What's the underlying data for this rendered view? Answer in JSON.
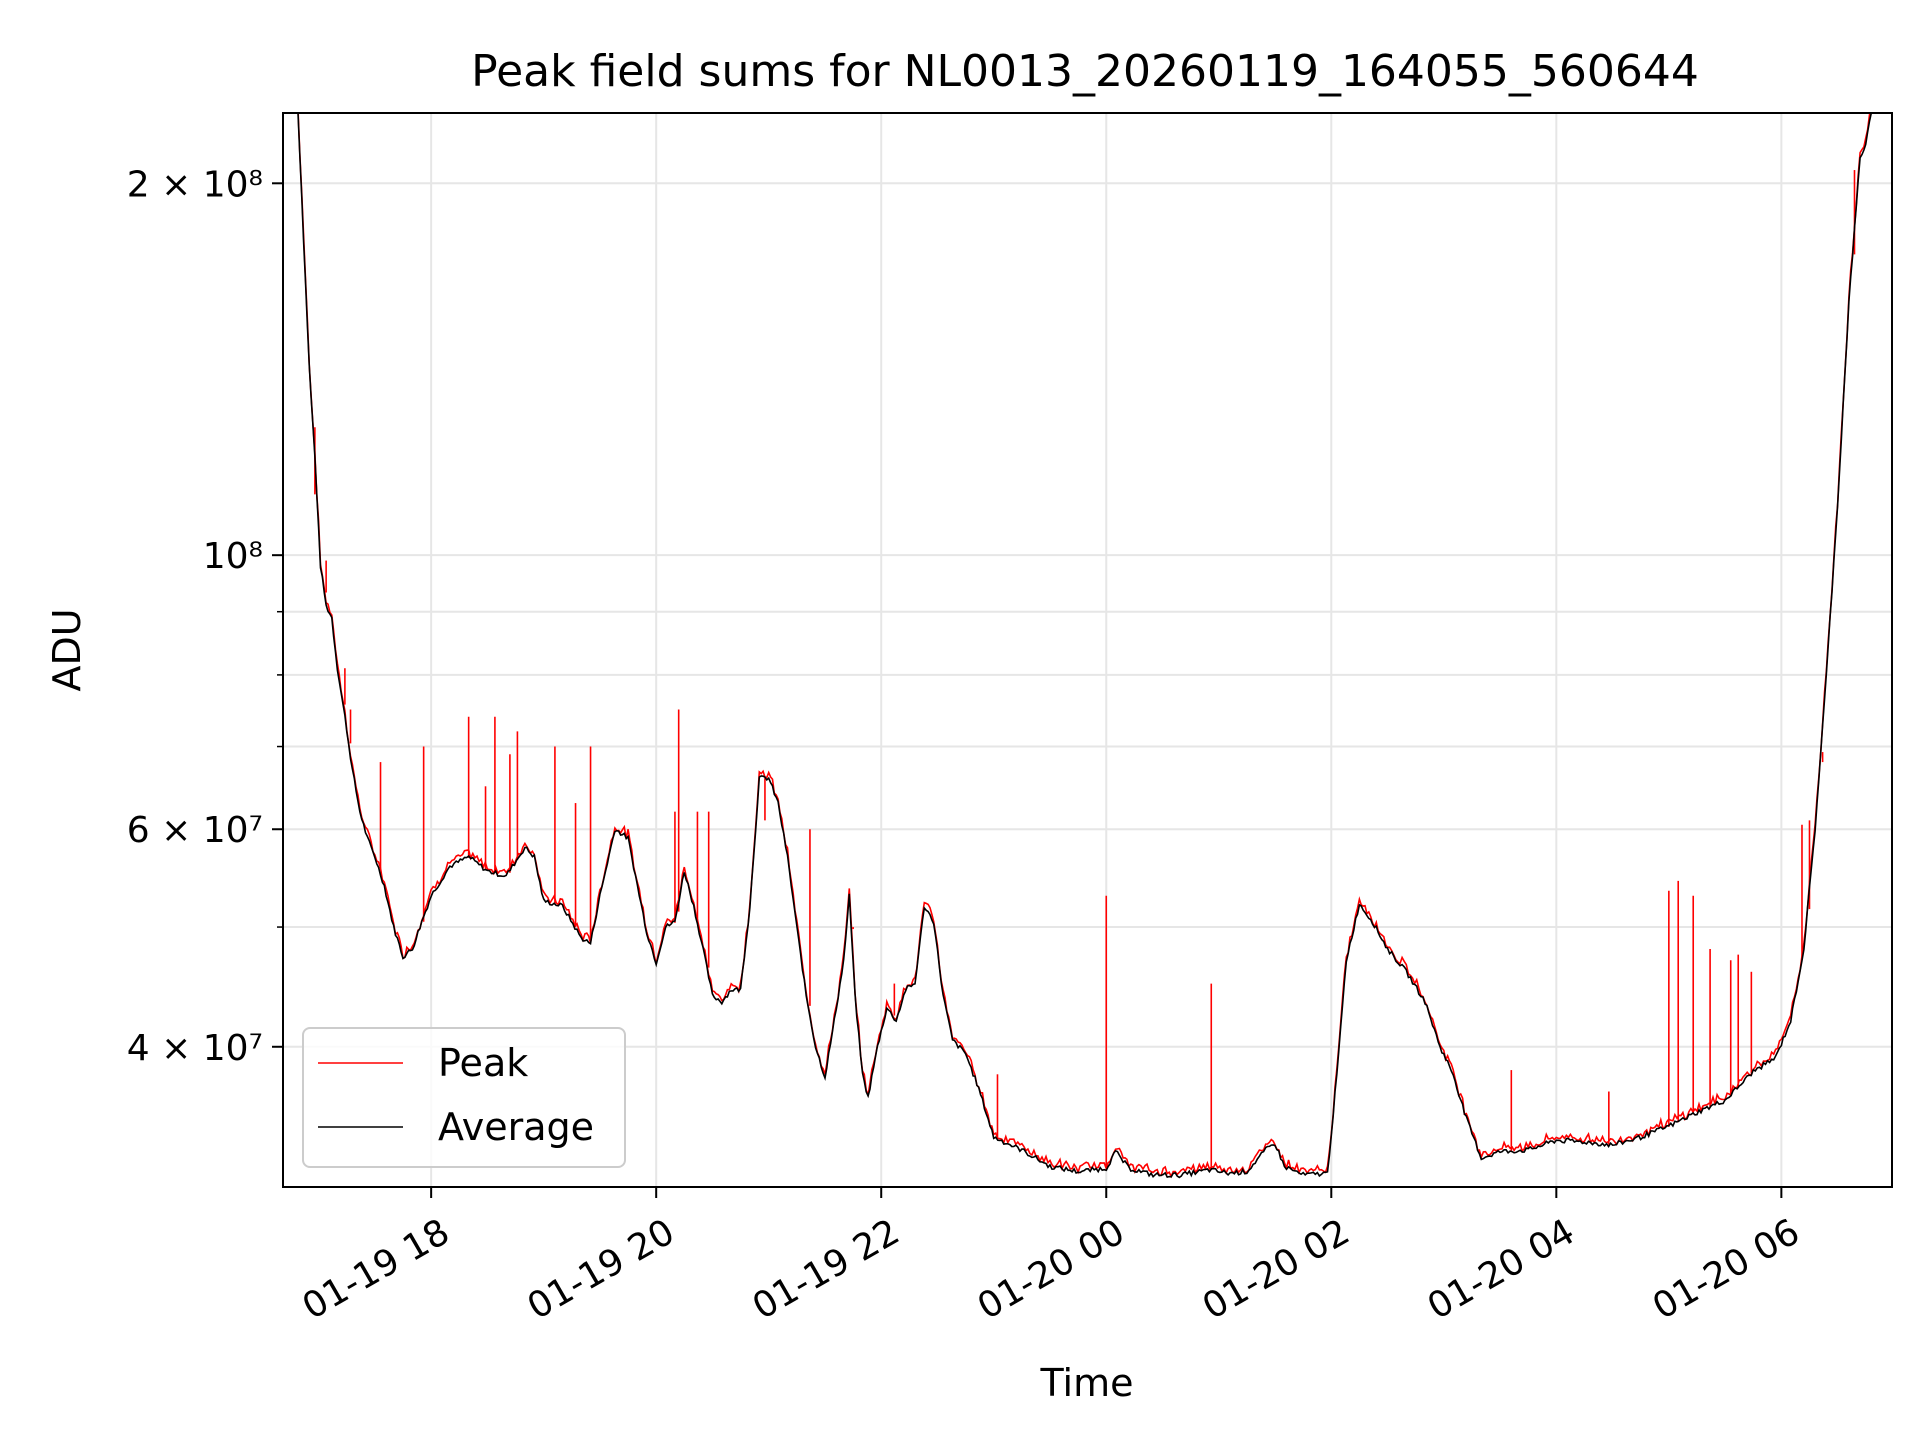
{
  "chart_data": {
    "type": "line",
    "title": "Peak field sums for NL0013_20260119_164055_560644",
    "xlabel": "Time",
    "ylabel": "ADU",
    "yscale": "log",
    "ylim": [
      30800000,
      228000000
    ],
    "xlim": [
      "2026-01-19 16:41",
      "2026-01-20 06:59"
    ],
    "grid": true,
    "legend": {
      "placement": "lower left",
      "entries": [
        {
          "name": "Peak",
          "color": "#ff0000"
        },
        {
          "name": "Average",
          "color": "#000000"
        }
      ]
    },
    "x_ticks": [
      {
        "t": "2026-01-19 18:00",
        "label": "01-19 18"
      },
      {
        "t": "2026-01-19 20:00",
        "label": "01-19 20"
      },
      {
        "t": "2026-01-19 22:00",
        "label": "01-19 22"
      },
      {
        "t": "2026-01-20 00:00",
        "label": "01-20 00"
      },
      {
        "t": "2026-01-20 02:00",
        "label": "01-20 02"
      },
      {
        "t": "2026-01-20 04:00",
        "label": "01-20 04"
      },
      {
        "t": "2026-01-20 06:00",
        "label": "01-20 06"
      }
    ],
    "y_major_ticks": [
      {
        "value": 40000000,
        "label": "4 × 10⁷"
      },
      {
        "value": 60000000,
        "label": "6 × 10⁷"
      },
      {
        "value": 100000000,
        "label": "10⁸"
      },
      {
        "value": 200000000,
        "label": "2 × 10⁸"
      }
    ],
    "y_minor_ticks": [
      50000000,
      70000000,
      80000000,
      90000000
    ],
    "series": [
      {
        "name": "Average",
        "color": "#000000",
        "points": [
          [
            "2026-01-19 16:49",
            228000000
          ],
          [
            "2026-01-19 16:52",
            180000000
          ],
          [
            "2026-01-19 16:55",
            142000000
          ],
          [
            "2026-01-19 16:58",
            120000000
          ],
          [
            "2026-01-19 17:01",
            98000000
          ],
          [
            "2026-01-19 17:04",
            91000000
          ],
          [
            "2026-01-19 17:07",
            89000000
          ],
          [
            "2026-01-19 17:10",
            81000000
          ],
          [
            "2026-01-19 17:14",
            74000000
          ],
          [
            "2026-01-19 17:18",
            67000000
          ],
          [
            "2026-01-19 17:22",
            62000000
          ],
          [
            "2026-01-19 17:26",
            59000000
          ],
          [
            "2026-01-19 17:30",
            57000000
          ],
          [
            "2026-01-19 17:35",
            54000000
          ],
          [
            "2026-01-19 17:40",
            50000000
          ],
          [
            "2026-01-19 17:45",
            47300000
          ],
          [
            "2026-01-19 17:50",
            48000000
          ],
          [
            "2026-01-19 17:55",
            50500000
          ],
          [
            "2026-01-19 18:00",
            53000000
          ],
          [
            "2026-01-19 18:10",
            56000000
          ],
          [
            "2026-01-19 18:20",
            57000000
          ],
          [
            "2026-01-19 18:30",
            55500000
          ],
          [
            "2026-01-19 18:40",
            55000000
          ],
          [
            "2026-01-19 18:50",
            58000000
          ],
          [
            "2026-01-19 18:55",
            57000000
          ],
          [
            "2026-01-19 19:00",
            52500000
          ],
          [
            "2026-01-19 19:10",
            52000000
          ],
          [
            "2026-01-19 19:20",
            49000000
          ],
          [
            "2026-01-19 19:25",
            48500000
          ],
          [
            "2026-01-19 19:30",
            53000000
          ],
          [
            "2026-01-19 19:38",
            60000000
          ],
          [
            "2026-01-19 19:45",
            59000000
          ],
          [
            "2026-01-19 19:50",
            54000000
          ],
          [
            "2026-01-19 19:55",
            49500000
          ],
          [
            "2026-01-19 20:00",
            46800000
          ],
          [
            "2026-01-19 20:05",
            50000000
          ],
          [
            "2026-01-19 20:10",
            50500000
          ],
          [
            "2026-01-19 20:15",
            55500000
          ],
          [
            "2026-01-19 20:20",
            52000000
          ],
          [
            "2026-01-19 20:25",
            48000000
          ],
          [
            "2026-01-19 20:30",
            44000000
          ],
          [
            "2026-01-19 20:35",
            43500000
          ],
          [
            "2026-01-19 20:40",
            44500000
          ],
          [
            "2026-01-19 20:45",
            44500000
          ],
          [
            "2026-01-19 20:50",
            52000000
          ],
          [
            "2026-01-19 20:55",
            66000000
          ],
          [
            "2026-01-19 21:00",
            66000000
          ],
          [
            "2026-01-19 21:05",
            63000000
          ],
          [
            "2026-01-19 21:10",
            57000000
          ],
          [
            "2026-01-19 21:15",
            50000000
          ],
          [
            "2026-01-19 21:20",
            44000000
          ],
          [
            "2026-01-19 21:25",
            40000000
          ],
          [
            "2026-01-19 21:30",
            37800000
          ],
          [
            "2026-01-19 21:35",
            42000000
          ],
          [
            "2026-01-19 21:40",
            47000000
          ],
          [
            "2026-01-19 21:43",
            53000000
          ],
          [
            "2026-01-19 21:46",
            44000000
          ],
          [
            "2026-01-19 21:50",
            38000000
          ],
          [
            "2026-01-19 21:53",
            36400000
          ],
          [
            "2026-01-19 21:58",
            40000000
          ],
          [
            "2026-01-19 22:03",
            43000000
          ],
          [
            "2026-01-19 22:08",
            42000000
          ],
          [
            "2026-01-19 22:13",
            44500000
          ],
          [
            "2026-01-19 22:18",
            45000000
          ],
          [
            "2026-01-19 22:23",
            52000000
          ],
          [
            "2026-01-19 22:28",
            50500000
          ],
          [
            "2026-01-19 22:33",
            44000000
          ],
          [
            "2026-01-19 22:38",
            40500000
          ],
          [
            "2026-01-19 22:45",
            39500000
          ],
          [
            "2026-01-19 22:52",
            37000000
          ],
          [
            "2026-01-19 23:00",
            33800000
          ],
          [
            "2026-01-19 23:15",
            33000000
          ],
          [
            "2026-01-19 23:30",
            32000000
          ],
          [
            "2026-01-19 23:45",
            31700000
          ],
          [
            "2026-01-20 00:00",
            31900000
          ],
          [
            "2026-01-20 00:05",
            32900000
          ],
          [
            "2026-01-20 00:12",
            31900000
          ],
          [
            "2026-01-20 00:25",
            31500000
          ],
          [
            "2026-01-20 00:40",
            31500000
          ],
          [
            "2026-01-20 00:55",
            31800000
          ],
          [
            "2026-01-20 01:05",
            31600000
          ],
          [
            "2026-01-20 01:15",
            31700000
          ],
          [
            "2026-01-20 01:25",
            33000000
          ],
          [
            "2026-01-20 01:30",
            33400000
          ],
          [
            "2026-01-20 01:35",
            32000000
          ],
          [
            "2026-01-20 01:45",
            31500000
          ],
          [
            "2026-01-20 01:58",
            31600000
          ],
          [
            "2026-01-20 02:03",
            38000000
          ],
          [
            "2026-01-20 02:08",
            47000000
          ],
          [
            "2026-01-20 02:15",
            52200000
          ],
          [
            "2026-01-20 02:22",
            50500000
          ],
          [
            "2026-01-20 02:30",
            48000000
          ],
          [
            "2026-01-20 02:40",
            46000000
          ],
          [
            "2026-01-20 02:50",
            43500000
          ],
          [
            "2026-01-20 02:58",
            40000000
          ],
          [
            "2026-01-20 03:05",
            38000000
          ],
          [
            "2026-01-20 03:12",
            35000000
          ],
          [
            "2026-01-20 03:20",
            32500000
          ],
          [
            "2026-01-20 03:30",
            32900000
          ],
          [
            "2026-01-20 03:45",
            33000000
          ],
          [
            "2026-01-20 04:00",
            33600000
          ],
          [
            "2026-01-20 04:15",
            33500000
          ],
          [
            "2026-01-20 04:30",
            33300000
          ],
          [
            "2026-01-20 04:45",
            33800000
          ],
          [
            "2026-01-20 05:00",
            34500000
          ],
          [
            "2026-01-20 05:15",
            35400000
          ],
          [
            "2026-01-20 05:30",
            36200000
          ],
          [
            "2026-01-20 05:45",
            38200000
          ],
          [
            "2026-01-20 05:57",
            39200000
          ],
          [
            "2026-01-20 06:05",
            42000000
          ],
          [
            "2026-01-20 06:12",
            48000000
          ],
          [
            "2026-01-20 06:18",
            60000000
          ],
          [
            "2026-01-20 06:24",
            80000000
          ],
          [
            "2026-01-20 06:30",
            110000000
          ],
          [
            "2026-01-20 06:36",
            160000000
          ],
          [
            "2026-01-20 06:42",
            210000000
          ],
          [
            "2026-01-20 06:45",
            215000000
          ],
          [
            "2026-01-20 06:48",
            228000000
          ]
        ]
      },
      {
        "name": "Peak",
        "color": "#ff0000",
        "spikes": [
          [
            "2026-01-19 16:58",
            112000000
          ],
          [
            "2026-01-19 17:04",
            99000000
          ],
          [
            "2026-01-19 17:14",
            81000000
          ],
          [
            "2026-01-19 17:17",
            75000000
          ],
          [
            "2026-01-19 17:33",
            68000000
          ],
          [
            "2026-01-19 17:56",
            70000000
          ],
          [
            "2026-01-19 18:20",
            74000000
          ],
          [
            "2026-01-19 18:29",
            65000000
          ],
          [
            "2026-01-19 18:34",
            74000000
          ],
          [
            "2026-01-19 18:42",
            69000000
          ],
          [
            "2026-01-19 18:46",
            72000000
          ],
          [
            "2026-01-19 19:06",
            70000000
          ],
          [
            "2026-01-19 19:17",
            63000000
          ],
          [
            "2026-01-19 19:25",
            70000000
          ],
          [
            "2026-01-19 20:10",
            62000000
          ],
          [
            "2026-01-19 20:12",
            75000000
          ],
          [
            "2026-01-19 20:22",
            62000000
          ],
          [
            "2026-01-19 20:28",
            62000000
          ],
          [
            "2026-01-19 20:58",
            61000000
          ],
          [
            "2026-01-19 21:22",
            60000000
          ],
          [
            "2026-01-19 21:45",
            50000000
          ],
          [
            "2026-01-19 22:07",
            45000000
          ],
          [
            "2026-01-19 23:02",
            38000000
          ],
          [
            "2026-01-20 00:00",
            53000000
          ],
          [
            "2026-01-20 00:56",
            45000000
          ],
          [
            "2026-01-20 03:36",
            38300000
          ],
          [
            "2026-01-20 04:28",
            36800000
          ],
          [
            "2026-01-20 05:00",
            53500000
          ],
          [
            "2026-01-20 05:05",
            54500000
          ],
          [
            "2026-01-20 05:13",
            53000000
          ],
          [
            "2026-01-20 05:22",
            48000000
          ],
          [
            "2026-01-20 05:33",
            47000000
          ],
          [
            "2026-01-20 05:37",
            47500000
          ],
          [
            "2026-01-20 05:44",
            46000000
          ],
          [
            "2026-01-20 06:11",
            60500000
          ],
          [
            "2026-01-20 06:15",
            61000000
          ],
          [
            "2026-01-20 06:22",
            68000000
          ],
          [
            "2026-01-20 06:39",
            205000000
          ]
        ]
      }
    ]
  }
}
